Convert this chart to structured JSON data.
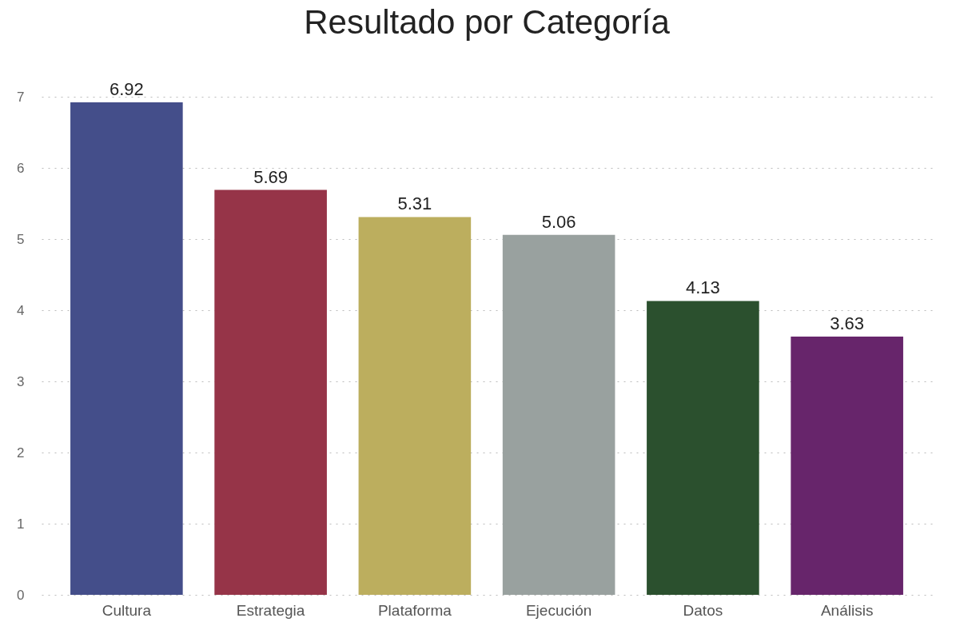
{
  "chart_data": {
    "type": "bar",
    "title": "Resultado por Categoría",
    "categories": [
      "Cultura",
      "Estrategia",
      "Plataforma",
      "Ejecución",
      "Datos",
      "Análisis"
    ],
    "values": [
      6.92,
      5.69,
      5.31,
      5.06,
      4.13,
      3.63
    ],
    "colors": [
      "#444e8a",
      "#963448",
      "#bcae5e",
      "#99a19f",
      "#2b502e",
      "#67256b"
    ],
    "ylim": [
      0,
      7
    ],
    "yticks": [
      0,
      1,
      2,
      3,
      4,
      5,
      6,
      7
    ],
    "grid": "y",
    "data_labels": true
  }
}
